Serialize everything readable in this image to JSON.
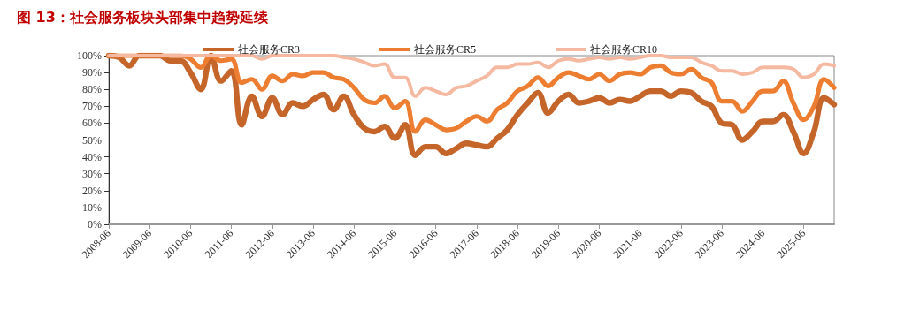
{
  "chart_data": {
    "type": "line",
    "title": "图 13：社会服务板块头部集中趋势延续",
    "x": [
      "2008-06",
      "2008-09",
      "2008-12",
      "2009-03",
      "2009-06",
      "2009-09",
      "2009-12",
      "2010-03",
      "2010-06",
      "2010-09",
      "2010-12",
      "2011-03",
      "2011-06",
      "2011-09",
      "2011-12",
      "2012-03",
      "2012-06",
      "2012-09",
      "2012-12",
      "2013-03",
      "2013-06",
      "2013-09",
      "2013-12",
      "2014-03",
      "2014-06",
      "2014-09",
      "2014-12",
      "2015-03",
      "2015-06",
      "2015-09",
      "2015-12",
      "2016-03",
      "2016-06",
      "2016-09",
      "2016-12",
      "2017-03",
      "2017-06",
      "2017-09",
      "2017-12",
      "2018-03",
      "2018-06",
      "2018-09",
      "2018-12",
      "2019-03",
      "2019-06",
      "2019-09",
      "2019-12",
      "2020-03",
      "2020-06",
      "2020-09",
      "2020-12",
      "2021-03",
      "2021-06",
      "2021-09",
      "2021-12",
      "2022-03",
      "2022-06",
      "2022-09",
      "2022-12",
      "2023-03",
      "2023-06",
      "2023-09",
      "2023-12",
      "2024-03",
      "2024-06",
      "2024-09",
      "2024-12",
      "2025-03",
      "2025-06",
      "2025-09",
      "2025-12",
      "2026-03"
    ],
    "series": [
      {
        "name": "社会服务CR3",
        "color": "#c5652a",
        "values": [
          100,
          99,
          94,
          100,
          100,
          100,
          97,
          97,
          90,
          80,
          100,
          85,
          91,
          59,
          76,
          64,
          75,
          65,
          72,
          70,
          74,
          77,
          68,
          76,
          65,
          57,
          55,
          58,
          51,
          59,
          41,
          46,
          46,
          42,
          45,
          48,
          47,
          46,
          51,
          56,
          65,
          72,
          78,
          66,
          73,
          77,
          72,
          73,
          75,
          72,
          74,
          73,
          76,
          79,
          79,
          76,
          79,
          78,
          73,
          70,
          60,
          59,
          50,
          55,
          61,
          61,
          65,
          55,
          42,
          55,
          75,
          71
        ]
      },
      {
        "name": "社会服务CR5",
        "color": "#ed7d31",
        "values": [
          100,
          100,
          100,
          100,
          100,
          100,
          100,
          100,
          98,
          93,
          100,
          97,
          98,
          84,
          86,
          80,
          88,
          85,
          89,
          88,
          90,
          90,
          87,
          86,
          81,
          74,
          72,
          76,
          69,
          73,
          55,
          62,
          59,
          56,
          57,
          61,
          64,
          61,
          68,
          72,
          79,
          82,
          87,
          82,
          87,
          90,
          88,
          86,
          89,
          85,
          89,
          90,
          89,
          93,
          94,
          90,
          89,
          92,
          87,
          84,
          73,
          73,
          67,
          73,
          79,
          79,
          85,
          72,
          62,
          70,
          86,
          81
        ]
      },
      {
        "name": "社会服务CR10",
        "color": "#f4b9a0",
        "values": [
          100,
          100,
          100,
          100,
          100,
          100,
          100,
          100,
          100,
          100,
          100,
          100,
          100,
          100,
          100,
          98,
          100,
          100,
          100,
          100,
          100,
          100,
          100,
          99,
          98,
          96,
          94,
          95,
          87,
          87,
          76,
          81,
          79,
          77,
          81,
          82,
          85,
          88,
          93,
          93,
          95,
          95,
          96,
          93,
          97,
          98,
          97,
          98,
          99,
          98,
          99,
          98,
          99,
          100,
          100,
          99,
          99,
          99,
          96,
          94,
          91,
          91,
          89,
          90,
          93,
          93,
          93,
          92,
          87,
          89,
          95,
          94
        ]
      }
    ],
    "xlim": [
      "2008-06",
      "2026-03"
    ],
    "xticks": [
      "2008-06",
      "2009-06",
      "2010-06",
      "2011-06",
      "2012-06",
      "2013-06",
      "2014-06",
      "2015-06",
      "2016-06",
      "2017-06",
      "2018-06",
      "2019-06",
      "2020-06",
      "2021-06",
      "2022-06",
      "2023-06",
      "2024-06",
      "2025-06"
    ],
    "ylim": [
      0,
      100
    ],
    "yticks": [
      {
        "value": 0,
        "label": "0%"
      },
      {
        "value": 10,
        "label": "10%"
      },
      {
        "value": 20,
        "label": "20%"
      },
      {
        "value": 30,
        "label": "30%"
      },
      {
        "value": 40,
        "label": "40%"
      },
      {
        "value": 50,
        "label": "50%"
      },
      {
        "value": 60,
        "label": "60%"
      },
      {
        "value": 70,
        "label": "70%"
      },
      {
        "value": 80,
        "label": "80%"
      },
      {
        "value": 90,
        "label": "90%"
      },
      {
        "value": 100,
        "label": "100%"
      }
    ],
    "grid": false,
    "legend": "top",
    "marker": "none",
    "line_style": "solid"
  }
}
